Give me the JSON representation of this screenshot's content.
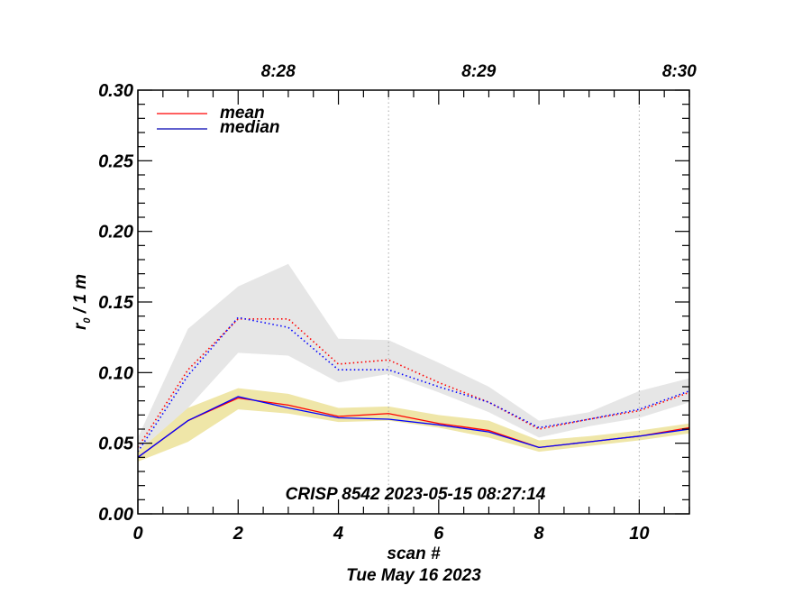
{
  "chart_data": {
    "type": "line",
    "title": "",
    "xlabel": "scan #",
    "ylabel": "r",
    "ylabel_subscript": "0",
    "ylabel_suffix": " / 1 m",
    "xlim": [
      0,
      11
    ],
    "ylim": [
      0.0,
      0.3
    ],
    "x_major_ticks": [
      0,
      2,
      4,
      6,
      8,
      10
    ],
    "x_tick_labels": [
      "0",
      "2",
      "4",
      "6",
      "8",
      "10"
    ],
    "y_major_ticks": [
      0.0,
      0.05,
      0.1,
      0.15,
      0.2,
      0.25,
      0.3
    ],
    "y_tick_labels": [
      "0.00",
      "0.05",
      "0.10",
      "0.15",
      "0.20",
      "0.25",
      "0.30"
    ],
    "top_axis": {
      "labels": [
        "8:28",
        "8:29",
        "8:30"
      ],
      "positions": [
        2.8,
        6.8,
        10.8
      ]
    },
    "vertical_markers": [
      5,
      10
    ],
    "annotation": "CRISP 8542 2023-05-15 08:27:14",
    "footer": "Tue May 16 2023",
    "legend": {
      "placement": "top-left",
      "entries": [
        {
          "name": "mean",
          "color": "#ff0000"
        },
        {
          "name": "median",
          "color": "#0000ff"
        }
      ]
    },
    "x": [
      0,
      1,
      2,
      3,
      4,
      5,
      6,
      7,
      8,
      9,
      10,
      11
    ],
    "series": [
      {
        "name": "mean",
        "group": "lower",
        "style": "solid",
        "color": "#ff0000",
        "values": [
          0.04,
          0.066,
          0.082,
          0.077,
          0.069,
          0.071,
          0.064,
          0.059,
          0.047,
          0.051,
          0.055,
          0.061
        ]
      },
      {
        "name": "median",
        "group": "lower",
        "style": "solid",
        "color": "#0000ff",
        "values": [
          0.04,
          0.066,
          0.083,
          0.075,
          0.068,
          0.067,
          0.063,
          0.058,
          0.047,
          0.051,
          0.055,
          0.06
        ]
      },
      {
        "name": "mean",
        "group": "upper",
        "style": "dotted",
        "color": "#ff0000",
        "values": [
          0.047,
          0.102,
          0.138,
          0.138,
          0.106,
          0.109,
          0.093,
          0.079,
          0.06,
          0.067,
          0.073,
          0.086
        ]
      },
      {
        "name": "median",
        "group": "upper",
        "style": "dotted",
        "color": "#0000ff",
        "values": [
          0.044,
          0.098,
          0.139,
          0.132,
          0.102,
          0.102,
          0.09,
          0.079,
          0.061,
          0.067,
          0.074,
          0.087
        ]
      }
    ],
    "bands": [
      {
        "name": "upper-range",
        "color": "#e6e6e6",
        "upper": [
          0.054,
          0.131,
          0.161,
          0.177,
          0.124,
          0.123,
          0.107,
          0.09,
          0.066,
          0.072,
          0.087,
          0.096
        ],
        "lower": [
          0.04,
          0.075,
          0.114,
          0.112,
          0.093,
          0.099,
          0.086,
          0.072,
          0.054,
          0.062,
          0.068,
          0.079
        ]
      },
      {
        "name": "lower-range",
        "color": "#efe6a8",
        "upper": [
          0.044,
          0.075,
          0.089,
          0.085,
          0.075,
          0.076,
          0.07,
          0.066,
          0.052,
          0.055,
          0.059,
          0.064
        ],
        "lower": [
          0.037,
          0.051,
          0.074,
          0.071,
          0.065,
          0.066,
          0.061,
          0.054,
          0.044,
          0.048,
          0.052,
          0.057
        ]
      }
    ]
  }
}
